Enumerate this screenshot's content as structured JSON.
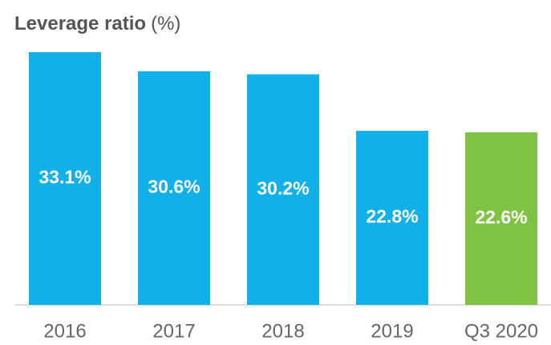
{
  "chart_data": {
    "type": "bar",
    "title": "Leverage ratio",
    "subtitle": "(%)",
    "categories": [
      "2016",
      "2017",
      "2018",
      "2019",
      "Q3 2020"
    ],
    "values": [
      33.1,
      30.6,
      30.2,
      22.8,
      22.6
    ],
    "value_labels": [
      "33.1%",
      "30.6%",
      "30.2%",
      "22.8%",
      "22.6%"
    ],
    "colors": [
      "#12b0e8",
      "#12b0e8",
      "#12b0e8",
      "#12b0e8",
      "#80c342"
    ]
  }
}
